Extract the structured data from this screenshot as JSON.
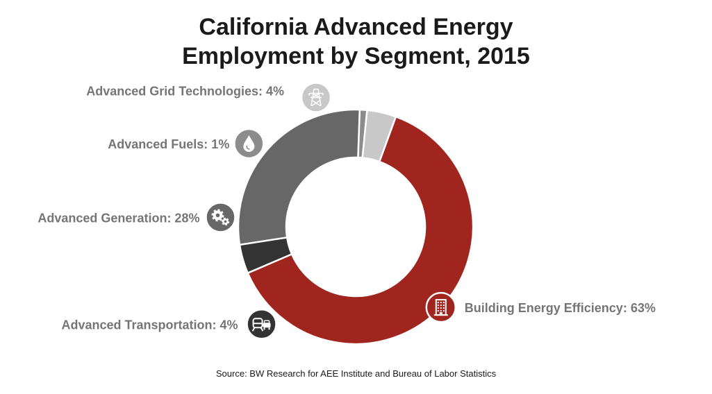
{
  "title": {
    "line1": "California Advanced Energy",
    "line2": "Employment by Segment, 2015"
  },
  "source": "Source: BW Research for AEE Institute and Bureau of Labor Statistics",
  "chart_data": {
    "type": "pie",
    "title": "California Advanced Energy Employment by Segment, 2015",
    "donut": true,
    "unit": "%",
    "segments": [
      {
        "name": "Building Energy Efficiency",
        "label": "Building Energy Efficiency: 63%",
        "value": 63,
        "color": "#a0251f",
        "icon": "building-icon"
      },
      {
        "name": "Advanced Transportation",
        "label": "Advanced Transportation: 4%",
        "value": 4,
        "color": "#333333",
        "icon": "car-train-icon"
      },
      {
        "name": "Advanced Generation",
        "label": "Advanced Generation: 28%",
        "value": 28,
        "color": "#676767",
        "icon": "gears-icon"
      },
      {
        "name": "Advanced Fuels",
        "label": "Advanced Fuels: 1%",
        "value": 1,
        "color": "#8c8c8c",
        "icon": "drop-icon"
      },
      {
        "name": "Advanced Grid Technologies",
        "label": "Advanced Grid Technologies: 4%",
        "value": 4,
        "color": "#c8c8c8",
        "icon": "transmission-tower-icon"
      }
    ]
  }
}
